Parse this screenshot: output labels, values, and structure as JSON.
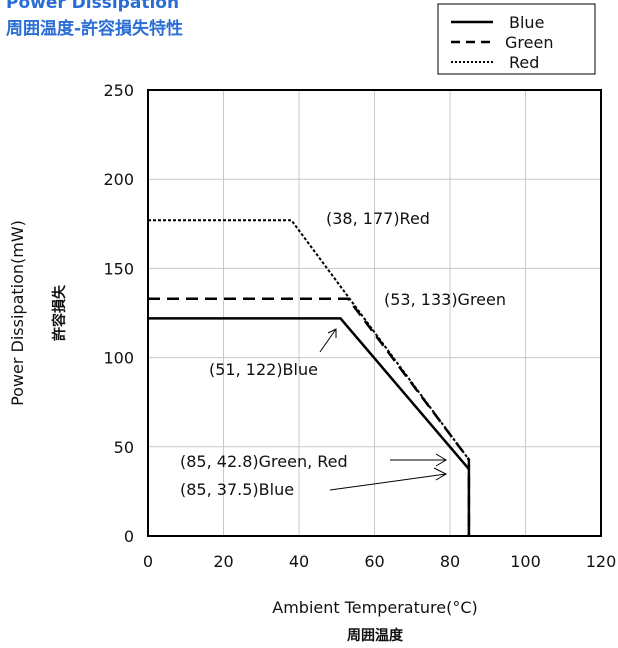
{
  "header": {
    "title_en": "Power Dissipation",
    "title_jp": "周囲温度-許容損失特性"
  },
  "chart_data": {
    "type": "line",
    "xlabel": "Ambient Temperature(°C)",
    "xlabel_jp": "周囲温度",
    "ylabel": "Power Dissipation(mW)",
    "ylabel_jp": "許容損失",
    "xlim": [
      0,
      120
    ],
    "ylim": [
      0,
      250
    ],
    "xticks": [
      0,
      20,
      40,
      60,
      80,
      100,
      120
    ],
    "yticks": [
      0,
      50,
      100,
      150,
      200,
      250
    ],
    "grid": true,
    "legend_position": "top-right",
    "series": [
      {
        "name": "Blue",
        "style": "solid",
        "points": [
          [
            0,
            122
          ],
          [
            51,
            122
          ],
          [
            85,
            37.5
          ],
          [
            85,
            0
          ]
        ]
      },
      {
        "name": "Green",
        "style": "dashed",
        "points": [
          [
            0,
            133
          ],
          [
            53,
            133
          ],
          [
            85,
            42.8
          ],
          [
            85,
            0
          ]
        ]
      },
      {
        "name": "Red",
        "style": "dotted",
        "points": [
          [
            0,
            177
          ],
          [
            38,
            177
          ],
          [
            85,
            42.8
          ],
          [
            85,
            0
          ]
        ]
      }
    ],
    "annotations": [
      {
        "text": "(38, 177)Red"
      },
      {
        "text": "(53, 133)Green"
      },
      {
        "text": "(51, 122)Blue"
      },
      {
        "text": "(85, 42.8)Green, Red"
      },
      {
        "text": "(85, 37.5)Blue"
      }
    ]
  }
}
